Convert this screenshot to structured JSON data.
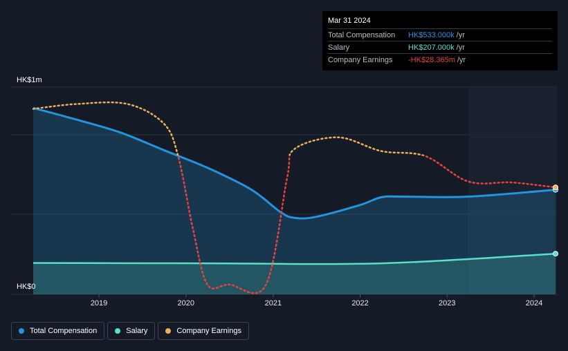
{
  "chart_data": {
    "type": "line",
    "y_labels": {
      "top": "HK$1m",
      "bottom": "HK$0"
    },
    "ylim": [
      0,
      1000
    ],
    "x_ticks": [
      "2019",
      "2020",
      "2021",
      "2022",
      "2023",
      "2024"
    ],
    "series": [
      {
        "name": "Total Compensation",
        "color": "#2394df",
        "style": "solid-area",
        "points": [
          [
            "2018-03-31",
            950
          ],
          [
            "2018-09-30",
            890
          ],
          [
            "2019-03-31",
            825
          ],
          [
            "2019-09-30",
            735
          ],
          [
            "2020-03-31",
            645
          ],
          [
            "2020-09-30",
            535
          ],
          [
            "2021-01-31",
            420
          ],
          [
            "2021-03-31",
            390
          ],
          [
            "2021-06-30",
            395
          ],
          [
            "2021-12-31",
            455
          ],
          [
            "2022-03-31",
            495
          ],
          [
            "2022-06-30",
            498
          ],
          [
            "2023-03-31",
            498
          ],
          [
            "2024-03-31",
            533
          ]
        ]
      },
      {
        "name": "Salary",
        "color": "#58e1c7",
        "style": "solid-area",
        "points": [
          [
            "2018-03-31",
            160
          ],
          [
            "2020-03-31",
            158
          ],
          [
            "2022-03-31",
            158
          ],
          [
            "2024-03-31",
            207
          ]
        ]
      },
      {
        "name": "Company Earnings",
        "color": "#f0b056",
        "negative_color": "#e9423f",
        "style": "dotted",
        "points": [
          [
            "2018-03-31",
            945
          ],
          [
            "2018-09-30",
            970
          ],
          [
            "2019-04-30",
            970
          ],
          [
            "2019-09-30",
            870
          ],
          [
            "2019-11-30",
            700
          ],
          [
            "2020-01-31",
            330
          ],
          [
            "2020-03-31",
            50
          ],
          [
            "2020-06-30",
            50
          ],
          [
            "2020-11-30",
            45
          ],
          [
            "2021-02-28",
            590
          ],
          [
            "2021-03-31",
            740
          ],
          [
            "2021-09-30",
            800
          ],
          [
            "2022-03-31",
            730
          ],
          [
            "2022-09-30",
            705
          ],
          [
            "2023-03-31",
            575
          ],
          [
            "2023-09-30",
            570
          ],
          [
            "2024-03-31",
            -28.365
          ]
        ]
      }
    ],
    "forecast_shading_from": "2023-03-31",
    "grid": true,
    "legend_position": "bottom-left"
  },
  "tooltip": {
    "date": "Mar 31 2024",
    "rows": [
      {
        "name": "Total Compensation",
        "value": "HK$533.000k",
        "unit": "/yr",
        "color": "#2394df"
      },
      {
        "name": "Salary",
        "value": "HK$207.000k",
        "unit": "/yr",
        "color": "#58e1c7"
      },
      {
        "name": "Company Earnings",
        "value": "-HK$28.365m",
        "unit": "/yr",
        "color": "#e9423f"
      }
    ]
  },
  "legend": [
    {
      "label": "Total Compensation",
      "color": "#2394df"
    },
    {
      "label": "Salary",
      "color": "#58e1c7"
    },
    {
      "label": "Company Earnings",
      "color": "#f0b056"
    }
  ]
}
